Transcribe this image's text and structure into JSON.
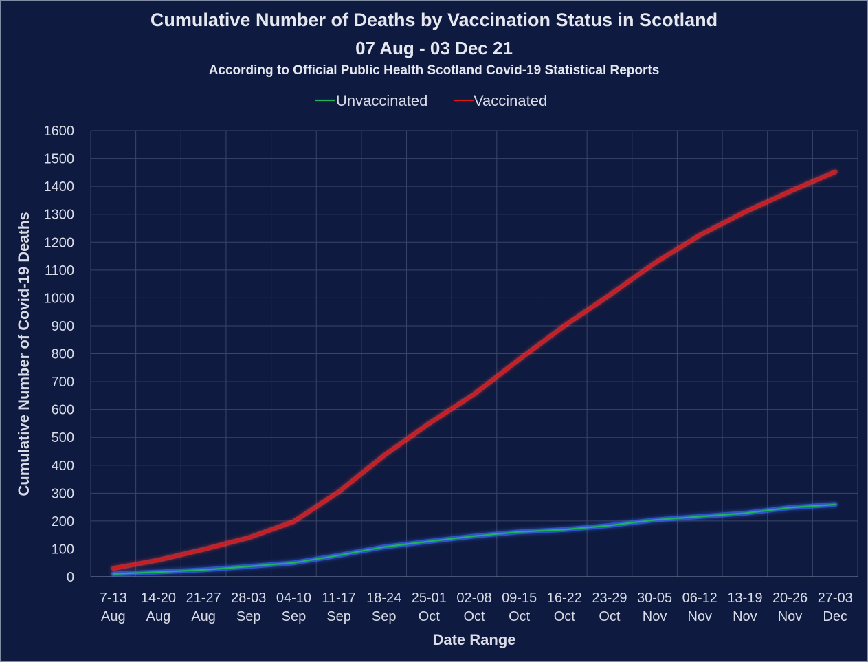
{
  "chart_data": {
    "type": "line",
    "title": "Cumulative Number of Deaths by Vaccination Status in Scotland",
    "subtitle": "07 Aug - 03 Dec 21",
    "note": "According to Official Public Health Scotland Covid-19 Statistical Reports",
    "xlabel": "Date Range",
    "ylabel": "Cumulative Number of Covid-19 Deaths",
    "ylim": [
      0,
      1600
    ],
    "yticks": [
      0,
      100,
      200,
      300,
      400,
      500,
      600,
      700,
      800,
      900,
      1000,
      1100,
      1200,
      1300,
      1400,
      1500,
      1600
    ],
    "grid": true,
    "legend_position": "top",
    "categories": [
      [
        "7-13",
        "Aug"
      ],
      [
        "14-20",
        "Aug"
      ],
      [
        "21-27",
        "Aug"
      ],
      [
        "28-03",
        "Sep"
      ],
      [
        "04-10",
        "Sep"
      ],
      [
        "11-17",
        "Sep"
      ],
      [
        "18-24",
        "Sep"
      ],
      [
        "25-01",
        "Oct"
      ],
      [
        "02-08",
        "Oct"
      ],
      [
        "09-15",
        "Oct"
      ],
      [
        "16-22",
        "Oct"
      ],
      [
        "23-29",
        "Oct"
      ],
      [
        "30-05",
        "Nov"
      ],
      [
        "06-12",
        "Nov"
      ],
      [
        "13-19",
        "Nov"
      ],
      [
        "20-26",
        "Nov"
      ],
      [
        "27-03",
        "Dec"
      ]
    ],
    "series": [
      {
        "name": "Unvaccinated",
        "color": "#1fb35a",
        "values": [
          10,
          17,
          25,
          37,
          50,
          77,
          107,
          127,
          146,
          161,
          169,
          184,
          204,
          216,
          228,
          248,
          259
        ]
      },
      {
        "name": "Vaccinated",
        "color": "#e01414",
        "values": [
          30,
          60,
          98,
          140,
          198,
          305,
          435,
          550,
          655,
          780,
          900,
          1010,
          1125,
          1225,
          1308,
          1382,
          1452
        ]
      }
    ]
  }
}
